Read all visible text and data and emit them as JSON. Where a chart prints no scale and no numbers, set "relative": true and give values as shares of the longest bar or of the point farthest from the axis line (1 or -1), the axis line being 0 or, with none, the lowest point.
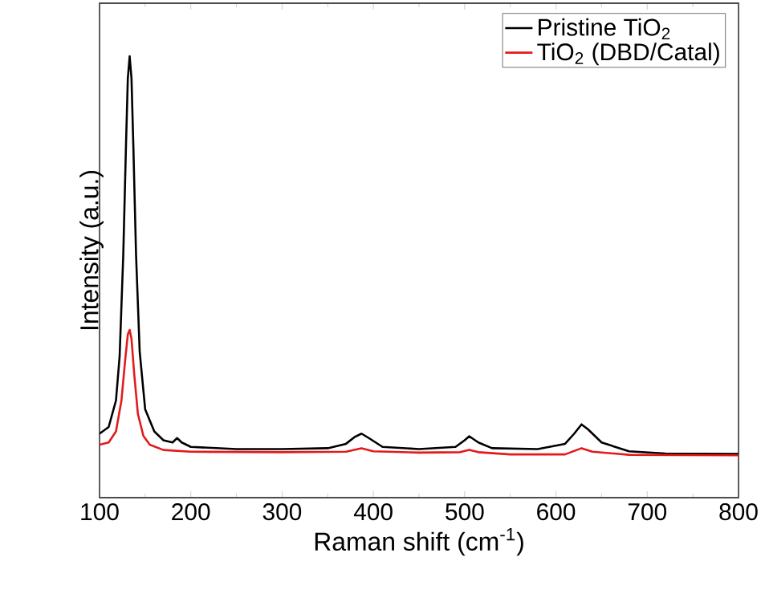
{
  "chart_data": {
    "type": "line",
    "relative": true,
    "xlabel": "Raman shift (cm$^{-1}$)",
    "ylabel": "Intensity (a.u.)",
    "xlim": [
      100,
      800
    ],
    "xticks": [
      100,
      200,
      300,
      400,
      500,
      600,
      700,
      800
    ],
    "legend": "top right",
    "marker": "none",
    "line_style": "solid",
    "series": [
      {
        "name": "Pristine TiO$_{2}$",
        "color": "#000000",
        "x": [
          100,
          110,
          118,
          122,
          126,
          129,
          131,
          133,
          135,
          137,
          140,
          144,
          150,
          160,
          170,
          180,
          185,
          190,
          200,
          250,
          300,
          350,
          370,
          380,
          387,
          395,
          410,
          450,
          490,
          500,
          505,
          515,
          530,
          580,
          610,
          620,
          628,
          635,
          650,
          680,
          720,
          800
        ],
        "values": [
          0.145,
          0.16,
          0.22,
          0.32,
          0.55,
          0.8,
          0.95,
          1.0,
          0.95,
          0.8,
          0.55,
          0.33,
          0.2,
          0.15,
          0.13,
          0.125,
          0.135,
          0.125,
          0.115,
          0.11,
          0.11,
          0.112,
          0.122,
          0.138,
          0.145,
          0.135,
          0.115,
          0.11,
          0.115,
          0.13,
          0.139,
          0.125,
          0.112,
          0.11,
          0.122,
          0.145,
          0.166,
          0.155,
          0.125,
          0.105,
          0.1,
          0.099
        ]
      },
      {
        "name": "TiO$_{2}$ (DBD/Catal)",
        "color": "#e31a1c",
        "x": [
          100,
          110,
          118,
          124,
          128,
          131,
          133,
          135,
          138,
          142,
          148,
          155,
          170,
          200,
          300,
          370,
          387,
          400,
          450,
          495,
          505,
          515,
          550,
          610,
          628,
          640,
          680,
          800
        ],
        "values": [
          0.12,
          0.125,
          0.15,
          0.22,
          0.31,
          0.37,
          0.38,
          0.36,
          0.28,
          0.19,
          0.14,
          0.12,
          0.108,
          0.104,
          0.103,
          0.104,
          0.112,
          0.105,
          0.102,
          0.103,
          0.108,
          0.103,
          0.098,
          0.098,
          0.112,
          0.104,
          0.097,
          0.096
        ]
      }
    ]
  }
}
